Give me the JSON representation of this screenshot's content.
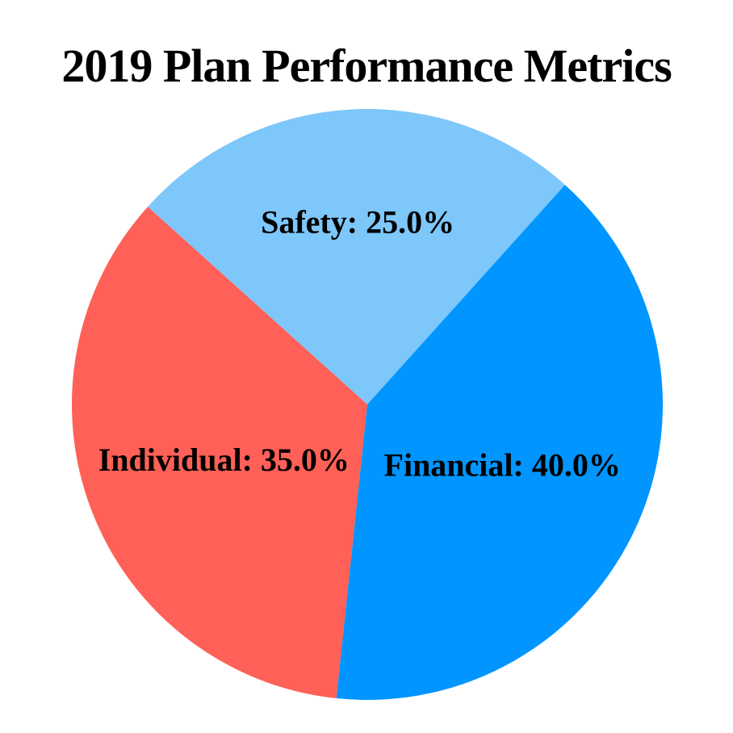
{
  "chart_data": {
    "type": "pie",
    "title": "2019 Plan Performance Metrics",
    "slices": [
      {
        "label": "Safety",
        "value": 25.0,
        "color": "#7EC7FA"
      },
      {
        "label": "Individual",
        "value": 35.0,
        "color": "#FF6057"
      },
      {
        "label": "Financial",
        "value": 40.0,
        "color": "#0095FF"
      }
    ],
    "labels_rendered": [
      "Safety: 25.0%",
      "Individual: 35.0%",
      "Financial: 40.0%"
    ],
    "value_unit": "%",
    "start_angle_deg": 48,
    "direction": "counterclockwise",
    "label_distance": [
      0.62,
      0.52,
      0.5
    ],
    "text_color": "#000000",
    "background": "#FFFFFF",
    "legend": false
  }
}
